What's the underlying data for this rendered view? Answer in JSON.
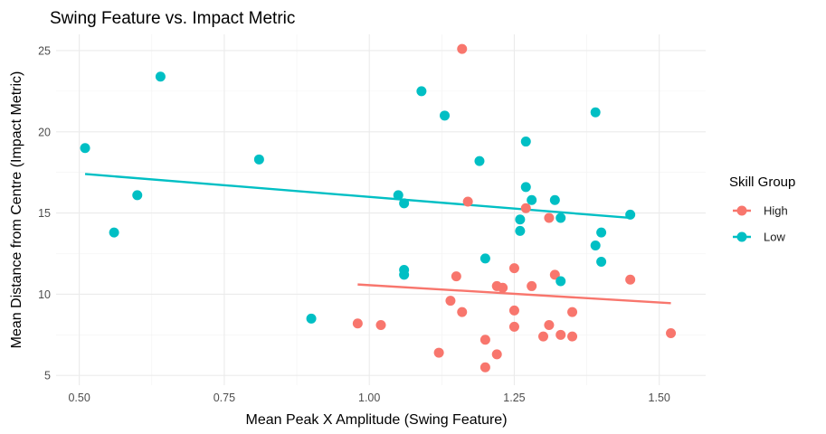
{
  "chart_data": {
    "type": "scatter",
    "title": "Swing Feature vs. Impact Metric",
    "xlabel": "Mean Peak X Amplitude (Swing Feature)",
    "ylabel": "Mean Distance from Centre (Impact Metric)",
    "xlim": [
      0.46,
      1.58
    ],
    "ylim": [
      4.4,
      26.0
    ],
    "x_ticks": [
      0.5,
      0.75,
      1.0,
      1.25,
      1.5
    ],
    "x_tick_labels": [
      "0.50",
      "0.75",
      "1.00",
      "1.25",
      "1.50"
    ],
    "y_ticks": [
      5,
      10,
      15,
      20,
      25
    ],
    "y_tick_labels": [
      "5",
      "10",
      "15",
      "20",
      "25"
    ],
    "grid": true,
    "legend": {
      "title": "Skill Group",
      "position": "right",
      "entries": [
        "High",
        "Low"
      ]
    },
    "series": [
      {
        "name": "High",
        "color": "#F8766D",
        "points": [
          [
            1.16,
            25.1
          ],
          [
            1.17,
            15.7
          ],
          [
            1.27,
            15.3
          ],
          [
            1.31,
            14.7
          ],
          [
            1.15,
            11.1
          ],
          [
            1.25,
            11.6
          ],
          [
            1.32,
            11.2
          ],
          [
            1.45,
            10.9
          ],
          [
            1.22,
            10.5
          ],
          [
            1.23,
            10.4
          ],
          [
            1.28,
            10.5
          ],
          [
            1.14,
            9.6
          ],
          [
            1.16,
            8.9
          ],
          [
            1.25,
            9.0
          ],
          [
            1.35,
            8.9
          ],
          [
            0.98,
            8.2
          ],
          [
            1.02,
            8.1
          ],
          [
            1.25,
            8.0
          ],
          [
            1.31,
            8.1
          ],
          [
            1.3,
            7.4
          ],
          [
            1.33,
            7.5
          ],
          [
            1.35,
            7.4
          ],
          [
            1.52,
            7.6
          ],
          [
            1.2,
            7.2
          ],
          [
            1.12,
            6.4
          ],
          [
            1.22,
            6.3
          ],
          [
            1.2,
            5.5
          ]
        ],
        "trend": [
          [
            0.98,
            10.6
          ],
          [
            1.52,
            9.45
          ]
        ]
      },
      {
        "name": "Low",
        "color": "#00BFC4",
        "points": [
          [
            0.51,
            19.0
          ],
          [
            0.64,
            23.4
          ],
          [
            0.6,
            16.1
          ],
          [
            0.56,
            13.8
          ],
          [
            0.81,
            18.3
          ],
          [
            0.9,
            8.5
          ],
          [
            1.05,
            16.1
          ],
          [
            1.06,
            15.6
          ],
          [
            1.06,
            11.5
          ],
          [
            1.06,
            11.2
          ],
          [
            1.09,
            22.5
          ],
          [
            1.13,
            21.0
          ],
          [
            1.19,
            18.2
          ],
          [
            1.2,
            12.2
          ],
          [
            1.27,
            19.4
          ],
          [
            1.27,
            16.6
          ],
          [
            1.28,
            15.8
          ],
          [
            1.26,
            14.6
          ],
          [
            1.26,
            13.9
          ],
          [
            1.32,
            15.8
          ],
          [
            1.33,
            14.7
          ],
          [
            1.33,
            10.8
          ],
          [
            1.39,
            21.2
          ],
          [
            1.39,
            13.0
          ],
          [
            1.4,
            13.8
          ],
          [
            1.4,
            12.0
          ],
          [
            1.45,
            14.9
          ]
        ],
        "trend": [
          [
            0.51,
            17.4
          ],
          [
            1.45,
            14.7
          ]
        ]
      }
    ]
  }
}
